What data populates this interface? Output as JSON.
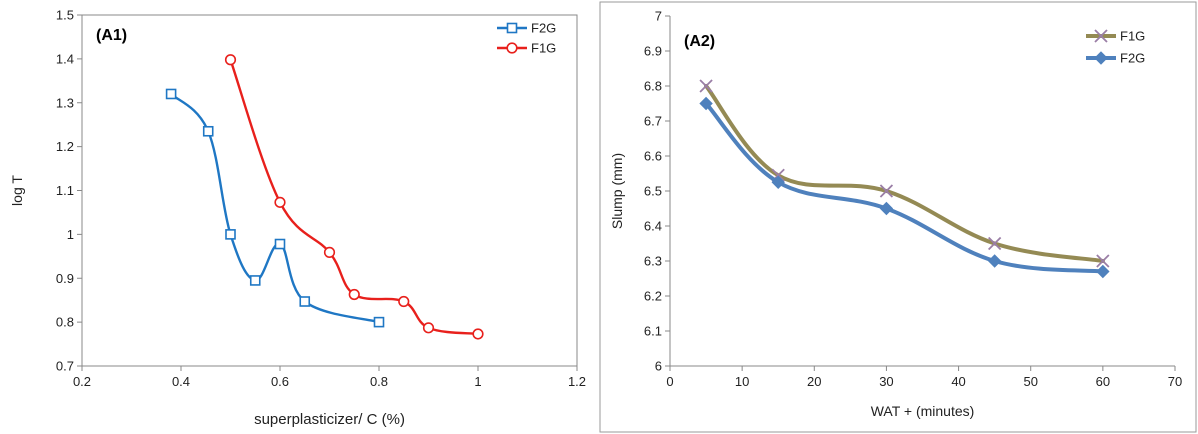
{
  "chart_data": [
    {
      "type": "line",
      "panel_label": "(A1)",
      "xlabel": "superplasticizer/ C (%)",
      "ylabel": "log T",
      "xlim": [
        0.2,
        1.2
      ],
      "ylim": [
        0.7,
        1.5
      ],
      "xticks": [
        "0.2",
        "0.4",
        "0.6",
        "0.8",
        "1",
        "1.2"
      ],
      "yticks": [
        "0.7",
        "0.8",
        "0.9",
        "1",
        "1.1",
        "1.2",
        "1.3",
        "1.4",
        "1.5"
      ],
      "grid": false,
      "legend_position": "top-right",
      "series": [
        {
          "name": "F2G",
          "color": "#1f77c4",
          "marker": "square",
          "x": [
            0.38,
            0.455,
            0.5,
            0.55,
            0.6,
            0.65,
            0.8
          ],
          "y": [
            1.32,
            1.235,
            1.0,
            0.895,
            0.978,
            0.847,
            0.8
          ]
        },
        {
          "name": "F1G",
          "color": "#e8201c",
          "marker": "circle",
          "x": [
            0.5,
            0.6,
            0.7,
            0.75,
            0.85,
            0.9,
            1.0
          ],
          "y": [
            1.398,
            1.073,
            0.959,
            0.863,
            0.847,
            0.787,
            0.773
          ]
        }
      ]
    },
    {
      "type": "line",
      "panel_label": "(A2)",
      "xlabel": "WAT + (minutes)",
      "ylabel": "Slump (mm)",
      "xlim": [
        0,
        70
      ],
      "ylim": [
        6,
        7
      ],
      "xticks": [
        "0",
        "10",
        "20",
        "30",
        "40",
        "50",
        "60",
        "70"
      ],
      "yticks": [
        "6",
        "6.1",
        "6.2",
        "6.3",
        "6.4",
        "6.5",
        "6.6",
        "6.7",
        "6.8",
        "6.9",
        "7"
      ],
      "grid": false,
      "legend_position": "top-right",
      "series": [
        {
          "name": "F1G",
          "color": "#948a54",
          "marker": "x",
          "x": [
            5,
            15,
            30,
            45,
            60
          ],
          "y": [
            6.8,
            6.545,
            6.5,
            6.35,
            6.3
          ]
        },
        {
          "name": "F2G",
          "color": "#4f81bd",
          "marker": "diamond",
          "x": [
            5,
            15,
            30,
            45,
            60
          ],
          "y": [
            6.75,
            6.525,
            6.45,
            6.3,
            6.27
          ]
        }
      ]
    }
  ]
}
